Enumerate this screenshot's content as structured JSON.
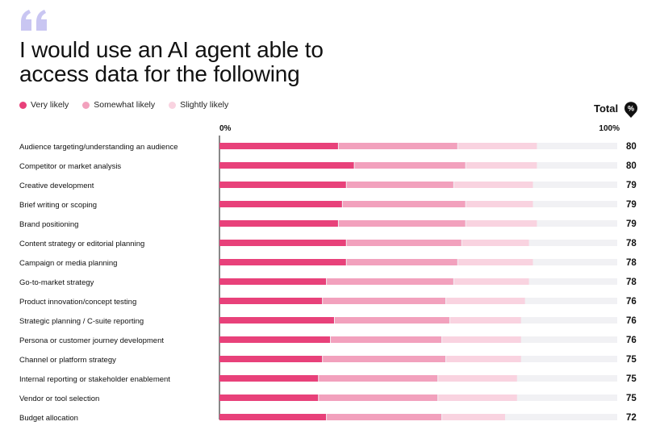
{
  "header": {
    "title_line1": "I would use an AI agent able to",
    "title_line2": "access data for the following",
    "quote_icon": "quote-mark-icon",
    "quote_color": "#c9c6f2"
  },
  "legend": {
    "items": [
      {
        "label": "Very likely",
        "color": "#e8417a"
      },
      {
        "label": "Somewhat likely",
        "color": "#f2a1bd"
      },
      {
        "label": "Slightly likely",
        "color": "#f9d3e0"
      }
    ]
  },
  "total": {
    "label": "Total",
    "badge": "%"
  },
  "chart_data": {
    "type": "bar",
    "orientation": "horizontal",
    "stacked": true,
    "xlim": [
      0,
      100
    ],
    "tick_labels": [
      "0%",
      "100%"
    ],
    "track_color": "#f1f1f4",
    "categories": [
      "Audience targeting/understanding an audience",
      "Competitor or market analysis",
      "Creative development",
      "Brief writing or scoping",
      "Brand positioning",
      "Content strategy or editorial planning",
      "Campaign or media planning",
      "Go-to-market strategy",
      "Product innovation/concept testing",
      "Strategic planning / C-suite reporting",
      "Persona or customer journey development",
      "Channel or platform strategy",
      "Internal reporting or stakeholder enablement",
      "Vendor or tool selection",
      "Budget allocation"
    ],
    "series": [
      {
        "name": "Very likely",
        "color": "#e8417a",
        "values": [
          30,
          34,
          32,
          31,
          30,
          32,
          32,
          27,
          26,
          29,
          28,
          26,
          25,
          25,
          27
        ]
      },
      {
        "name": "Somewhat likely",
        "color": "#f2a1bd",
        "values": [
          30,
          28,
          27,
          31,
          32,
          29,
          28,
          32,
          31,
          29,
          28,
          31,
          30,
          30,
          29
        ]
      },
      {
        "name": "Slightly likely",
        "color": "#f9d3e0",
        "values": [
          20,
          18,
          20,
          17,
          18,
          17,
          19,
          19,
          20,
          18,
          20,
          19,
          20,
          20,
          16
        ]
      }
    ],
    "totals": [
      80,
      80,
      79,
      79,
      79,
      78,
      78,
      78,
      76,
      76,
      76,
      75,
      75,
      75,
      72
    ]
  }
}
